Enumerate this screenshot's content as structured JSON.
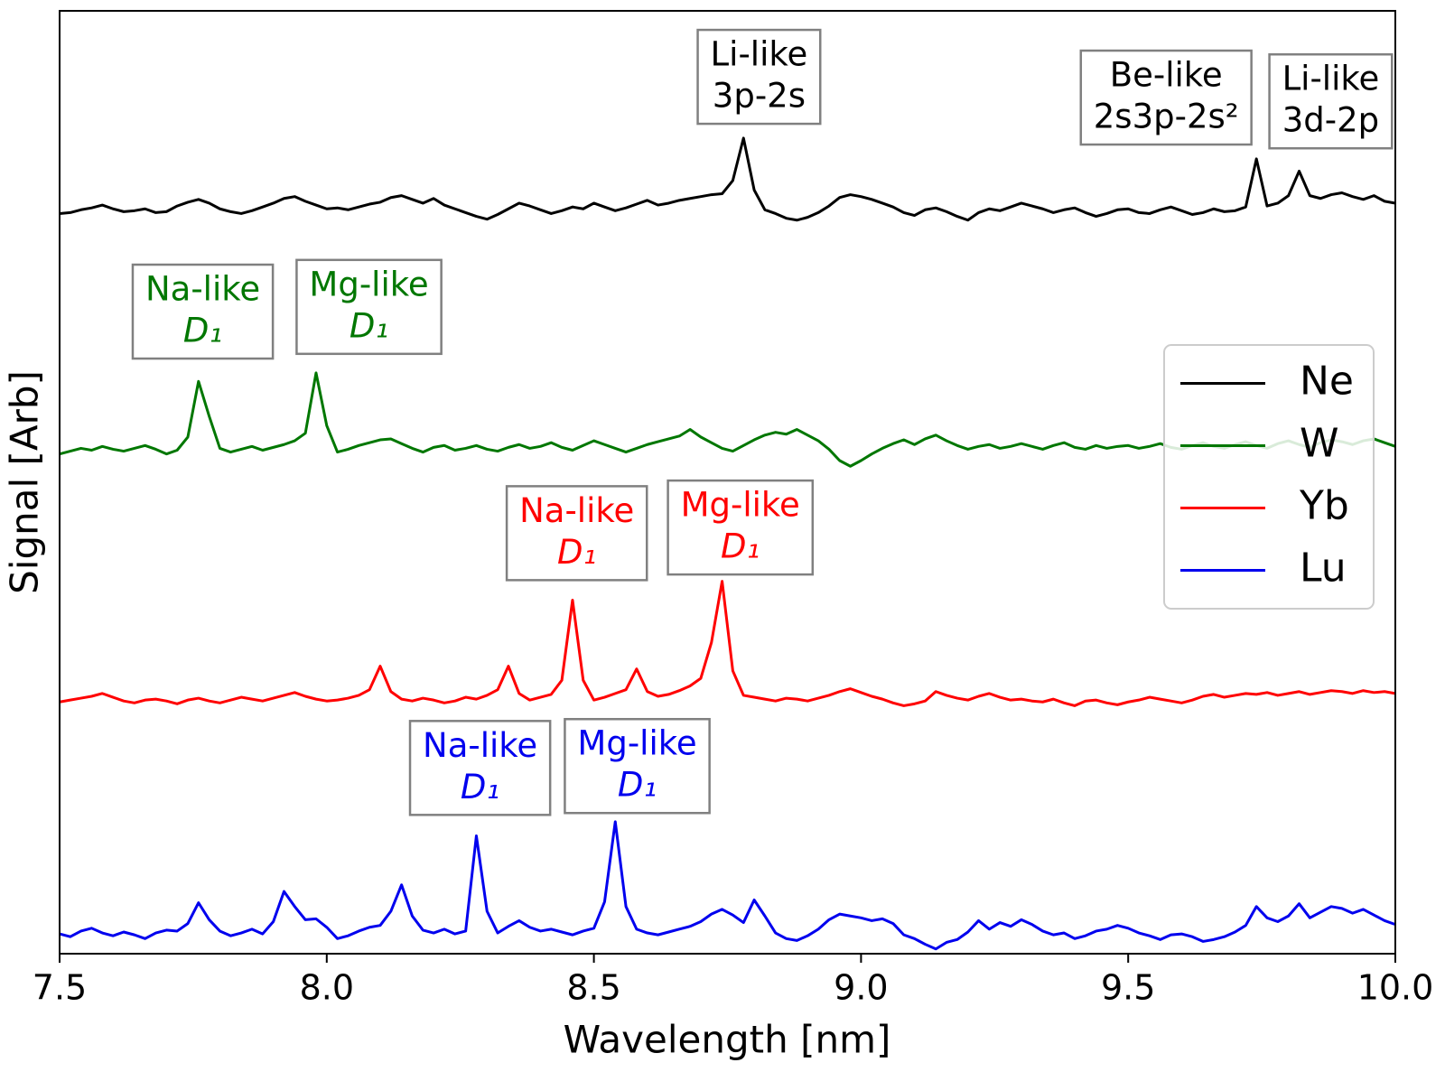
{
  "chart_data": {
    "type": "line",
    "xlabel": "Wavelength [nm]",
    "ylabel": "Signal [Arb]",
    "xlim": [
      7.5,
      10.0
    ],
    "ylim": [
      0,
      100
    ],
    "xticks": [
      7.5,
      {
        "value": 8,
        "label": "8.0"
      },
      8.5,
      {
        "value": 9,
        "label": "9.0"
      },
      9.5,
      {
        "value": 10,
        "label": "10.0"
      }
    ],
    "legend": "center right",
    "x": [
      7.5,
      7.52,
      7.54,
      7.56,
      7.58,
      7.6,
      7.62,
      7.64,
      7.66,
      7.68,
      7.7,
      7.72,
      7.74,
      7.76,
      7.78,
      7.8,
      7.82,
      7.84,
      7.86,
      7.88,
      7.9,
      7.92,
      7.94,
      7.96,
      7.98,
      8.0,
      8.02,
      8.04,
      8.06,
      8.08,
      8.1,
      8.12,
      8.14,
      8.16,
      8.18,
      8.2,
      8.22,
      8.24,
      8.26,
      8.28,
      8.3,
      8.32,
      8.34,
      8.36,
      8.38,
      8.4,
      8.42,
      8.44,
      8.46,
      8.48,
      8.5,
      8.52,
      8.54,
      8.56,
      8.58,
      8.6,
      8.62,
      8.64,
      8.66,
      8.68,
      8.7,
      8.72,
      8.74,
      8.76,
      8.78,
      8.8,
      8.82,
      8.84,
      8.86,
      8.88,
      8.9,
      8.92,
      8.94,
      8.96,
      8.98,
      9.0,
      9.02,
      9.04,
      9.06,
      9.08,
      9.1,
      9.12,
      9.14,
      9.16,
      9.18,
      9.2,
      9.22,
      9.24,
      9.26,
      9.28,
      9.3,
      9.32,
      9.34,
      9.36,
      9.38,
      9.4,
      9.42,
      9.44,
      9.46,
      9.48,
      9.5,
      9.52,
      9.54,
      9.56,
      9.58,
      9.6,
      9.62,
      9.64,
      9.66,
      9.68,
      9.7,
      9.72,
      9.74,
      9.76,
      9.78,
      9.8,
      9.82,
      9.84,
      9.86,
      9.88,
      9.9,
      9.92,
      9.94,
      9.96,
      9.98,
      10.0
    ],
    "series": [
      {
        "name": "Ne",
        "color": "#000000",
        "values": [
          78.5,
          78.6,
          78.9,
          79.1,
          79.4,
          79.0,
          78.7,
          78.8,
          79.0,
          78.6,
          78.7,
          79.3,
          79.7,
          80.0,
          79.6,
          79.0,
          78.7,
          78.5,
          78.8,
          79.2,
          79.6,
          80.1,
          80.3,
          79.8,
          79.4,
          79.0,
          79.1,
          78.9,
          79.2,
          79.5,
          79.7,
          80.2,
          80.4,
          80.0,
          79.6,
          80.1,
          79.4,
          79.0,
          78.6,
          78.2,
          77.9,
          78.4,
          79.0,
          79.6,
          79.3,
          78.9,
          78.5,
          78.8,
          79.2,
          79.0,
          79.6,
          79.2,
          78.8,
          79.1,
          79.5,
          79.9,
          79.4,
          79.6,
          79.9,
          80.1,
          80.3,
          80.5,
          80.6,
          82.0,
          86.5,
          81.0,
          78.9,
          78.5,
          78.0,
          77.8,
          78.1,
          78.6,
          79.3,
          80.2,
          80.5,
          80.3,
          80.0,
          79.6,
          79.2,
          78.6,
          78.3,
          78.9,
          79.1,
          78.7,
          78.2,
          77.8,
          78.6,
          79.0,
          78.8,
          79.2,
          79.6,
          79.3,
          79.0,
          78.6,
          78.9,
          79.1,
          78.6,
          78.2,
          78.5,
          78.9,
          79.0,
          78.6,
          78.5,
          78.9,
          79.2,
          78.8,
          78.4,
          78.6,
          79.0,
          78.7,
          78.8,
          79.2,
          84.3,
          79.3,
          79.6,
          80.4,
          83.0,
          80.4,
          80.1,
          80.5,
          80.7,
          80.3,
          80.0,
          80.4,
          79.8,
          79.6
        ]
      },
      {
        "name": "W",
        "color": "#007700",
        "values": [
          53.0,
          53.3,
          53.6,
          53.4,
          53.8,
          53.5,
          53.3,
          53.6,
          53.9,
          53.5,
          53.0,
          53.4,
          54.8,
          60.7,
          57.0,
          53.6,
          53.2,
          53.5,
          53.8,
          53.4,
          53.7,
          54.0,
          54.4,
          55.2,
          61.6,
          56.0,
          53.2,
          53.5,
          53.9,
          54.2,
          54.5,
          54.6,
          54.1,
          53.6,
          53.2,
          53.7,
          53.9,
          53.4,
          53.6,
          53.9,
          53.5,
          53.3,
          53.7,
          54.0,
          53.6,
          53.8,
          54.2,
          53.7,
          53.4,
          53.9,
          54.4,
          54.0,
          53.6,
          53.2,
          53.6,
          54.0,
          54.3,
          54.6,
          54.9,
          55.6,
          54.8,
          54.2,
          53.6,
          53.3,
          53.9,
          54.5,
          55.0,
          55.3,
          55.1,
          55.6,
          55.0,
          54.4,
          53.5,
          52.3,
          51.7,
          52.3,
          53.0,
          53.6,
          54.1,
          54.5,
          54.0,
          54.6,
          55.0,
          54.4,
          53.9,
          53.5,
          53.8,
          54.0,
          53.6,
          53.8,
          54.1,
          53.8,
          53.5,
          53.9,
          54.2,
          53.7,
          53.5,
          53.9,
          53.6,
          53.8,
          53.9,
          53.6,
          53.8,
          54.1,
          53.7,
          53.5,
          53.9,
          54.2,
          53.8,
          53.6,
          54.0,
          54.3,
          53.9,
          53.6,
          54.1,
          54.4,
          54.0,
          53.7,
          54.2,
          54.5,
          54.3,
          54.0,
          54.4,
          54.6,
          54.2,
          53.8
        ]
      },
      {
        "name": "Yb",
        "color": "#ff0000",
        "values": [
          26.7,
          26.9,
          27.1,
          27.3,
          27.6,
          27.2,
          26.8,
          26.6,
          26.9,
          27.0,
          26.8,
          26.5,
          26.9,
          27.1,
          26.8,
          26.6,
          26.9,
          27.2,
          27.0,
          26.8,
          27.1,
          27.4,
          27.7,
          27.3,
          27.0,
          26.8,
          26.9,
          27.1,
          27.4,
          28.0,
          30.5,
          27.8,
          27.0,
          26.8,
          27.1,
          26.9,
          26.6,
          26.8,
          27.2,
          27.0,
          27.4,
          28.0,
          30.5,
          27.6,
          26.9,
          27.2,
          27.5,
          29.0,
          37.5,
          29.0,
          26.9,
          27.2,
          27.6,
          28.0,
          30.2,
          27.8,
          27.3,
          27.5,
          27.9,
          28.4,
          29.2,
          33.0,
          39.5,
          30.0,
          27.4,
          27.2,
          27.0,
          26.8,
          27.1,
          27.0,
          26.8,
          27.1,
          27.4,
          27.8,
          28.1,
          27.7,
          27.3,
          27.0,
          26.6,
          26.3,
          26.5,
          26.8,
          27.8,
          27.4,
          27.1,
          26.9,
          27.3,
          27.6,
          27.2,
          26.9,
          27.0,
          26.8,
          26.7,
          27.0,
          26.6,
          26.3,
          26.8,
          26.9,
          26.6,
          26.4,
          26.7,
          26.9,
          27.2,
          27.0,
          26.8,
          26.6,
          26.9,
          27.3,
          27.5,
          27.2,
          27.4,
          27.6,
          27.5,
          27.7,
          27.4,
          27.6,
          27.8,
          27.5,
          27.7,
          27.9,
          27.8,
          27.6,
          27.9,
          27.7,
          27.8,
          27.6
        ]
      },
      {
        "name": "Lu",
        "color": "#0000ee",
        "values": [
          2.1,
          1.8,
          2.4,
          2.7,
          2.2,
          1.9,
          2.3,
          2.0,
          1.6,
          2.2,
          2.5,
          2.4,
          3.2,
          5.4,
          3.6,
          2.4,
          1.9,
          2.2,
          2.6,
          2.1,
          3.4,
          6.6,
          5.0,
          3.6,
          3.7,
          2.8,
          1.6,
          1.9,
          2.4,
          2.8,
          3.0,
          4.5,
          7.3,
          4.0,
          2.5,
          2.2,
          2.6,
          2.1,
          2.4,
          12.5,
          4.5,
          2.2,
          2.9,
          3.5,
          2.8,
          2.4,
          2.6,
          2.3,
          2.0,
          2.4,
          2.7,
          5.5,
          14.0,
          5.0,
          2.6,
          2.2,
          2.0,
          2.3,
          2.6,
          2.9,
          3.4,
          4.2,
          4.7,
          4.1,
          3.3,
          5.7,
          4.0,
          2.2,
          1.6,
          1.4,
          1.9,
          2.6,
          3.6,
          4.2,
          4.0,
          3.8,
          3.5,
          3.7,
          3.2,
          2.0,
          1.6,
          1.0,
          0.5,
          1.2,
          1.5,
          2.3,
          3.5,
          2.6,
          3.3,
          2.9,
          3.6,
          3.1,
          2.4,
          2.0,
          2.2,
          1.6,
          1.9,
          2.4,
          2.6,
          3.0,
          2.7,
          2.2,
          1.9,
          1.5,
          2.0,
          2.1,
          1.8,
          1.3,
          1.5,
          1.8,
          2.3,
          3.0,
          5.0,
          3.8,
          3.4,
          4.0,
          5.3,
          3.8,
          4.4,
          5.0,
          4.8,
          4.3,
          4.7,
          4.1,
          3.5,
          3.1
        ]
      }
    ],
    "annotations": [
      {
        "lines": [
          "Li-like",
          "3p-2s"
        ],
        "x": 8.809,
        "y": 93.0,
        "color": "#000000"
      },
      {
        "lines": [
          "Be-like",
          "2s3p-2s²"
        ],
        "x": 9.571,
        "y": 90.8,
        "color": "#000000"
      },
      {
        "lines": [
          "Li-like",
          "3d-2p"
        ],
        "x": 9.879,
        "y": 90.4,
        "color": "#000000"
      },
      {
        "lines": [
          "Na-like",
          "D₁"
        ],
        "x": 7.768,
        "y": 68.1,
        "color": "#007700"
      },
      {
        "lines": [
          "Mg-like",
          "D₁"
        ],
        "x": 8.079,
        "y": 68.6,
        "color": "#007700"
      },
      {
        "lines": [
          "Na-like",
          "D₁"
        ],
        "x": 8.468,
        "y": 44.6,
        "color": "#ff0000"
      },
      {
        "lines": [
          "Mg-like",
          "D₁"
        ],
        "x": 8.774,
        "y": 45.2,
        "color": "#ff0000"
      },
      {
        "lines": [
          "Na-like",
          "D₁"
        ],
        "x": 8.287,
        "y": 19.7,
        "color": "#0000ee"
      },
      {
        "lines": [
          "Mg-like",
          "D₁"
        ],
        "x": 8.581,
        "y": 19.9,
        "color": "#0000ee"
      }
    ]
  }
}
